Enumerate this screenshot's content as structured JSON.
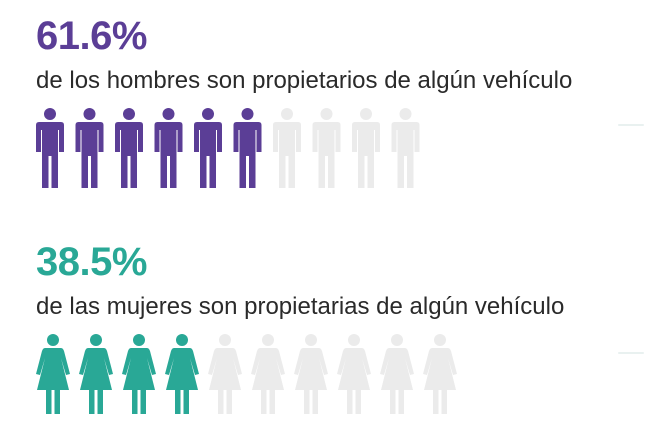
{
  "chart_data": [
    {
      "type": "pictogram",
      "title": "61.6%",
      "subtitle": "de los hombres son propietarios de algún vehículo",
      "value_percent": 61.6,
      "icons_total": 10,
      "icons_filled": 6,
      "icon": "male-figure-icon",
      "filled_color": "#5b3e96",
      "empty_color": "#ebebeb"
    },
    {
      "type": "pictogram",
      "title": "38.5%",
      "subtitle": "de las mujeres son propietarias de algún vehículo",
      "value_percent": 38.5,
      "icons_total": 10,
      "icons_filled": 4,
      "icon": "female-figure-icon",
      "filled_color": "#29a896",
      "empty_color": "#ebebeb"
    }
  ]
}
